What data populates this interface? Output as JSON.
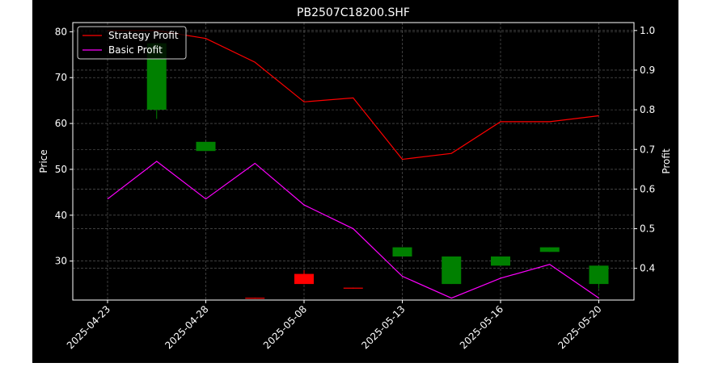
{
  "chart_data": {
    "type": "candlestick+line",
    "title": "PB2507C18200.SHF",
    "xlabel": "",
    "ylabel": "Price",
    "y2label": "Profit",
    "ylim": [
      21.5,
      82
    ],
    "y2lim": [
      0.32,
      1.02
    ],
    "yticks": [
      30,
      40,
      50,
      60,
      70,
      80
    ],
    "y2ticks": [
      0.4,
      0.5,
      0.6,
      0.7,
      0.8,
      0.9,
      1.0
    ],
    "x_tick_labels": [
      "2025-04-23",
      "2025-04-28",
      "2025-05-08",
      "2025-05-13",
      "2025-05-16",
      "2025-05-20"
    ],
    "x_tick_index": [
      0,
      2,
      4,
      6,
      8,
      10
    ],
    "grid": true,
    "legend_position": "top-left",
    "colors": {
      "background": "#000000",
      "axes": "#ffffff",
      "grid": "#666666",
      "up": "#008000",
      "down": "#ff0000",
      "strategy": "#ff0000",
      "basic": "#ff00ff"
    },
    "candles": [
      {
        "index": 0,
        "open": null,
        "close": null,
        "high": null,
        "low": null
      },
      {
        "index": 1,
        "open": 63.0,
        "close": 77.5,
        "high": 77.5,
        "low": 61.0
      },
      {
        "index": 2,
        "open": 54.0,
        "close": 56.0,
        "high": 56.0,
        "low": 54.0
      },
      {
        "index": 3,
        "open": 22.0,
        "close": 21.8,
        "high": 22.0,
        "low": 21.8
      },
      {
        "index": 4,
        "open": 27.2,
        "close": 25.0,
        "high": 28.0,
        "low": 25.0
      },
      {
        "index": 5,
        "open": 24.2,
        "close": 24.0,
        "high": 24.2,
        "low": 24.0
      },
      {
        "index": 6,
        "open": 31.0,
        "close": 33.0,
        "high": 33.0,
        "low": 31.0
      },
      {
        "index": 7,
        "open": 25.0,
        "close": 31.0,
        "high": 31.0,
        "low": 25.0
      },
      {
        "index": 8,
        "open": 29.0,
        "close": 31.0,
        "high": 31.0,
        "low": 29.0
      },
      {
        "index": 9,
        "open": 32.0,
        "close": 33.0,
        "high": 33.0,
        "low": 32.0
      },
      {
        "index": 10,
        "open": 25.0,
        "close": 29.0,
        "high": 29.0,
        "low": 24.0
      }
    ],
    "series": [
      {
        "name": "Strategy Profit",
        "axis": "right",
        "color": "#ff0000",
        "values": [
          1.0,
          1.0,
          0.98,
          0.92,
          0.82,
          0.83,
          0.675,
          0.69,
          0.77,
          0.77,
          0.785
        ]
      },
      {
        "name": "Basic Profit",
        "axis": "right",
        "color": "#ff00ff",
        "values": [
          0.575,
          0.67,
          0.575,
          0.665,
          0.56,
          0.5,
          0.38,
          0.325,
          0.375,
          0.41,
          0.325
        ]
      }
    ]
  }
}
